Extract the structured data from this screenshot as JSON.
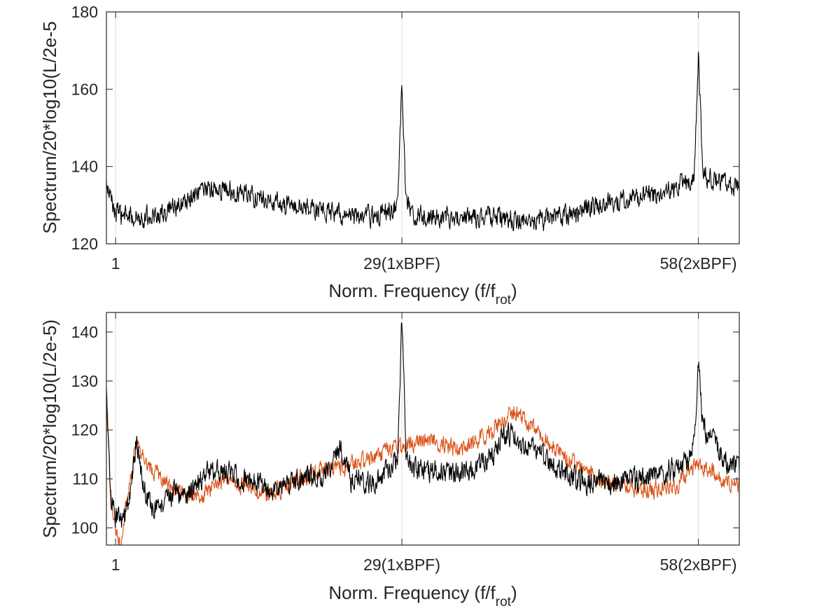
{
  "chart_data": [
    {
      "type": "line",
      "xlabel": "Norm. Frequency (f/f",
      "xlabel_sub": "rot",
      "xlabel_close": ")",
      "ylabel": "Spectrum/20*log10(L/2e-5",
      "xlim": [
        0.1,
        62
      ],
      "ylim": [
        120,
        180
      ],
      "xticks": [
        1,
        29,
        58
      ],
      "xtick_labels": [
        "1",
        "29(1xBPF)",
        "58(2xBPF)"
      ],
      "yticks": [
        120,
        140,
        160,
        180
      ],
      "ytick_labels": [
        "120",
        "140",
        "160",
        "180"
      ],
      "vertical_gridlines_at": [
        1,
        29,
        58
      ],
      "series": [
        {
          "color": "#000000",
          "noise": 2.2,
          "x": [
            0.1,
            1,
            2,
            4,
            6,
            8,
            10,
            12,
            14,
            16,
            18,
            20,
            22,
            24,
            26,
            27,
            28,
            28.6,
            29,
            29.4,
            30,
            31,
            32,
            34,
            36,
            38,
            40,
            42,
            44,
            46,
            48,
            50,
            52,
            54,
            55,
            56,
            57,
            57.6,
            58,
            58.4,
            59,
            60,
            61,
            62
          ],
          "y": [
            135,
            128,
            127,
            127,
            128,
            131,
            134,
            134,
            133,
            131,
            130,
            129,
            128,
            127,
            127,
            128,
            129,
            131,
            163,
            131,
            128,
            127,
            127,
            127,
            127,
            127,
            126,
            126,
            127,
            128,
            130,
            131,
            132,
            133,
            134,
            135,
            136,
            138,
            170,
            139,
            137,
            136,
            135,
            134
          ]
        }
      ]
    },
    {
      "type": "line",
      "xlabel": "Norm. Frequency (f/f",
      "xlabel_sub": "rot",
      "xlabel_close": ")",
      "ylabel": "Spectrum/20*log10(L/2e-5)",
      "xlim": [
        0.1,
        62
      ],
      "ylim": [
        96.5,
        144
      ],
      "xticks": [
        1,
        29,
        58
      ],
      "xtick_labels": [
        "1",
        "29(1xBPF)",
        "58(2xBPF)"
      ],
      "yticks": [
        100,
        110,
        120,
        130,
        140
      ],
      "ytick_labels": [
        "100",
        "110",
        "120",
        "130",
        "140"
      ],
      "vertical_gridlines_at": [
        1,
        29,
        58
      ],
      "series": [
        {
          "color": "#d95319",
          "noise": 1.5,
          "x": [
            0.1,
            0.5,
            1,
            1.5,
            2,
            2.5,
            3,
            4,
            5,
            6,
            7,
            8,
            9,
            10,
            12,
            14,
            16,
            18,
            20,
            22,
            24,
            26,
            28,
            30,
            32,
            34,
            36,
            38,
            39,
            40,
            41,
            42,
            44,
            46,
            48,
            50,
            52,
            54,
            56,
            57,
            58,
            59,
            60,
            61,
            62
          ],
          "y": [
            127,
            108,
            100,
            97,
            104,
            110,
            118,
            113,
            111,
            109,
            108,
            107,
            106,
            108,
            110,
            108,
            107,
            109,
            111,
            112,
            113,
            114,
            116,
            117,
            118,
            116,
            117,
            120,
            122,
            124,
            122,
            120,
            116,
            113,
            110,
            109,
            108,
            108,
            109,
            111,
            113,
            112,
            110,
            109,
            109
          ]
        },
        {
          "color": "#000000",
          "noise": 2.0,
          "x": [
            0.1,
            0.5,
            1,
            1.5,
            2,
            2.5,
            3,
            4,
            5,
            6,
            7,
            8,
            9,
            10,
            12,
            14,
            16,
            18,
            20,
            22,
            23,
            24,
            26,
            28,
            28.6,
            29,
            29.4,
            30,
            32,
            34,
            36,
            38,
            39,
            40,
            41,
            42,
            44,
            46,
            48,
            50,
            52,
            54,
            56,
            57,
            57.6,
            58,
            58.4,
            59,
            60,
            61,
            62
          ],
          "y": [
            127,
            107,
            102,
            101,
            103,
            108,
            118,
            106,
            104,
            106,
            108,
            106,
            109,
            112,
            111,
            110,
            108,
            109,
            110,
            111,
            117,
            110,
            109,
            112,
            114,
            144,
            114,
            112,
            111,
            111,
            112,
            115,
            119,
            119,
            117,
            116,
            112,
            110,
            109,
            109,
            110,
            111,
            112,
            114,
            118,
            134,
            121,
            119,
            116,
            113,
            112
          ]
        }
      ]
    }
  ]
}
